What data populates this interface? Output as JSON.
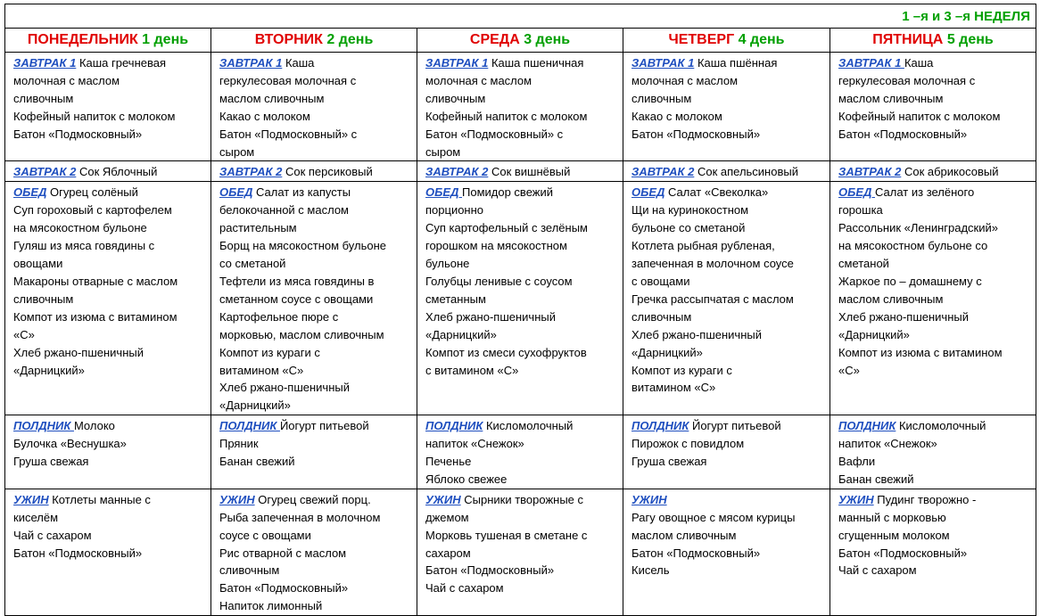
{
  "week_label": "1 –я  и 3 –я НЕДЕЛЯ",
  "days": [
    {
      "name": "ПОНЕДЕЛЬНИК",
      "num": "1 день"
    },
    {
      "name": "ВТОРНИК",
      "num": "2 день"
    },
    {
      "name": "СРЕДА",
      "num": "3 день"
    },
    {
      "name": "ЧЕТВЕРГ",
      "num": "4 день"
    },
    {
      "name": "ПЯТНИЦА",
      "num": "5 день"
    }
  ],
  "meals": [
    {
      "key": "b1",
      "cells": [
        {
          "head": "ЗАВТРАК 1",
          "lines": [
            "Каша гречневая",
            "молочная с маслом",
            "сливочным",
            "Кофейный напиток с молоком",
            "Батон «Подмосковный»"
          ]
        },
        {
          "head": "ЗАВТРАК 1",
          "lines": [
            "Каша",
            "геркулесовая молочная с",
            "маслом сливочным",
            "Какао  с молоком",
            "Батон «Подмосковный» с",
            "сыром"
          ]
        },
        {
          "head": "ЗАВТРАК 1",
          "lines": [
            "Каша пшеничная",
            "молочная с маслом",
            "сливочным",
            "Кофейный напиток с молоком",
            "Батон «Подмосковный»  с",
            "сыром"
          ]
        },
        {
          "head": "ЗАВТРАК 1",
          "lines": [
            "Каша пшённая",
            "молочная с маслом",
            "сливочным",
            "Какао с молоком",
            "Батон «Подмосковный»"
          ]
        },
        {
          "head": "ЗАВТРАК 1 ",
          "lines": [
            "Каша",
            "геркулесовая молочная с",
            "маслом сливочным",
            "Кофейный напиток с молоком",
            "Батон «Подмосковный»"
          ]
        }
      ]
    },
    {
      "key": "b2",
      "cells": [
        {
          "head": "ЗАВТРАК 2",
          "lines": [
            "Сок Яблочный"
          ]
        },
        {
          "head": "ЗАВТРАК 2",
          "lines": [
            "Сок персиковый"
          ]
        },
        {
          "head": "ЗАВТРАК 2",
          "lines": [
            "Сок вишнёвый"
          ]
        },
        {
          "head": "ЗАВТРАК 2",
          "lines": [
            "Сок апельсиновый"
          ]
        },
        {
          "head": "ЗАВТРАК 2",
          "lines": [
            "Сок абрикосовый"
          ]
        }
      ]
    },
    {
      "key": "lunch",
      "cells": [
        {
          "head": "ОБЕД",
          "lines": [
            "Огурец солёный",
            "Суп гороховый  с картофелем",
            "на мясокостном бульоне",
            "Гуляш из мяса говядины с",
            "овощами",
            "Макароны отварные  с маслом",
            "сливочным",
            "Компот из изюма с витамином",
            "«С»",
            "Хлеб ржано-пшеничный",
            "«Дарницкий»"
          ]
        },
        {
          "head": "ОБЕД",
          "lines": [
            "Салат из капусты",
            "белокочанной с маслом",
            "растительным",
            "Борщ на мясокостном  бульоне",
            "со сметаной",
            "Тефтели из мяса говядины в",
            "сметанном соусе с овощами",
            "Картофельное пюре с",
            "морковью,  маслом сливочным",
            "Компот  из  кураги с",
            "витамином «С»",
            "Хлеб ржано-пшеничный",
            "«Дарницкий»"
          ]
        },
        {
          "head": "ОБЕД ",
          "lines": [
            "Помидор свежий",
            "порционно",
            "Суп картофельный  с зелёным",
            "горошком  на мясокостном",
            "бульоне",
            "Голубцы ленивые с соусом",
            "сметанным",
            "Хлеб ржано-пшеничный",
            "«Дарницкий»",
            "Компот из смеси сухофруктов",
            "с витамином «С»"
          ]
        },
        {
          "head": "ОБЕД",
          "lines": [
            "Салат «Свеколка»",
            "Щи  на куринокостном",
            "бульоне со сметаной",
            "Котлета рыбная рубленая,",
            "запеченная в молочном соусе",
            "с овощами",
            "Гречка рассыпчатая с маслом",
            "сливочным",
            "Хлеб ржано-пшеничный",
            "«Дарницкий»",
            "Компот из  кураги с",
            "витамином «С»"
          ]
        },
        {
          "head": "ОБЕД ",
          "lines": [
            "Салат из зелёного",
            "горошка",
            "Рассольник «Ленинградский»",
            "на мясокостном бульоне со",
            "сметаной",
            "Жаркое по – домашнему  с",
            "маслом сливочным",
            "Хлеб ржано-пшеничный",
            "«Дарницкий»",
            "Компот из изюма с витамином",
            "«С»"
          ]
        }
      ]
    },
    {
      "key": "snack",
      "cells": [
        {
          "head": "ПОЛДНИК ",
          "lines": [
            "Молоко",
            "Булочка «Веснушка»",
            "Груша свежая"
          ]
        },
        {
          "head": "ПОЛДНИК ",
          "lines": [
            "Йогурт питьевой",
            "Пряник",
            "Банан свежий"
          ]
        },
        {
          "head": "ПОЛДНИК",
          "lines": [
            "Кисломолочный",
            "напиток «Снежок»",
            "Печенье",
            "Яблоко свежее"
          ]
        },
        {
          "head": "ПОЛДНИК",
          "lines": [
            "Йогурт питьевой",
            "Пирожок с повидлом",
            "Груша свежая"
          ]
        },
        {
          "head": "ПОЛДНИК",
          "lines": [
            "Кисломолочный",
            "напиток «Снежок»",
            "Вафли",
            "Банан свежий"
          ]
        }
      ]
    },
    {
      "key": "dinner",
      "cells": [
        {
          "head": "УЖИН",
          "lines": [
            "Котлеты манные с",
            "киселём",
            "Чай с сахаром",
            "Батон «Подмосковный»"
          ]
        },
        {
          "head": "УЖИН",
          "lines": [
            "Огурец свежий порц.",
            "Рыба запеченная в молочном",
            "соусе с овощами",
            "Рис отварной с маслом",
            "сливочным",
            "Батон «Подмосковный»",
            "Напиток лимонный"
          ]
        },
        {
          "head": "УЖИН",
          "lines": [
            "Сырники творожные  с",
            "джемом",
            "Морковь тушеная в сметане с",
            "сахаром",
            "Батон «Подмосковный»",
            "Чай с сахаром"
          ]
        },
        {
          "head": "УЖИН",
          "lines": [
            "",
            "Рагу овощное с мясом курицы",
            "маслом сливочным",
            "Батон «Подмосковный»",
            "Кисель"
          ]
        },
        {
          "head": "УЖИН",
          "lines": [
            "Пудинг творожно -",
            "манный с морковью",
            "сгущенным молоком",
            "Батон «Подмосковный»",
            "Чай с сахаром"
          ]
        }
      ]
    }
  ]
}
